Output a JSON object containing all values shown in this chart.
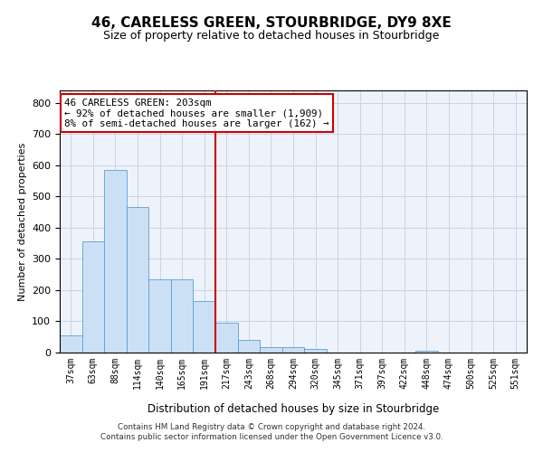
{
  "title": "46, CARELESS GREEN, STOURBRIDGE, DY9 8XE",
  "subtitle": "Size of property relative to detached houses in Stourbridge",
  "xlabel": "Distribution of detached houses by size in Stourbridge",
  "ylabel": "Number of detached properties",
  "bar_color": "#cce0f5",
  "bar_edge_color": "#5a9fd4",
  "vline_color": "#cc0000",
  "vline_x_index": 6,
  "annotation_line1": "46 CARELESS GREEN: 203sqm",
  "annotation_line2": "← 92% of detached houses are smaller (1,909)",
  "annotation_line3": "8% of semi-detached houses are larger (162) →",
  "annotation_box_color": "#ffffff",
  "annotation_box_edge": "#cc0000",
  "footer": "Contains HM Land Registry data © Crown copyright and database right 2024.\nContains public sector information licensed under the Open Government Licence v3.0.",
  "categories": [
    "37sqm",
    "63sqm",
    "88sqm",
    "114sqm",
    "140sqm",
    "165sqm",
    "191sqm",
    "217sqm",
    "243sqm",
    "268sqm",
    "294sqm",
    "320sqm",
    "345sqm",
    "371sqm",
    "397sqm",
    "422sqm",
    "448sqm",
    "474sqm",
    "500sqm",
    "525sqm",
    "551sqm"
  ],
  "values": [
    55,
    355,
    585,
    465,
    235,
    235,
    165,
    95,
    40,
    17,
    17,
    12,
    0,
    0,
    0,
    0,
    7,
    0,
    0,
    0,
    0
  ],
  "ylim": [
    0,
    840
  ],
  "yticks": [
    0,
    100,
    200,
    300,
    400,
    500,
    600,
    700,
    800
  ],
  "background_color": "#eef2fa",
  "grid_color": "#c8d4e8",
  "title_fontsize": 11,
  "subtitle_fontsize": 9,
  "ylabel_fontsize": 8,
  "xlabel_fontsize": 8.5
}
